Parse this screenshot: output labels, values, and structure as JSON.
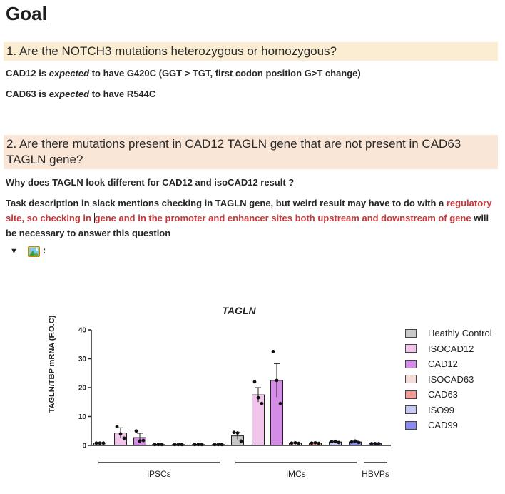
{
  "page": {
    "title": "Goal",
    "q1": {
      "heading": "1. Are the NOTCH3 mutations heterozygous or homozygous?",
      "line1_pre": "CAD12 is ",
      "line1_em": "expected",
      "line1_post": " to have G420C (GGT > TGT, first codon position G>T change)",
      "line2_pre": "CAD63 is ",
      "line2_em": "expected",
      "line2_post": " to have R544C"
    },
    "q2": {
      "heading": "2. Are there mutations present in CAD12 TAGLN gene that are not present in CAD63 TAGLN gene?",
      "question": "Why does TAGLN look different for CAD12 and isoCAD12 result ?",
      "task_normal1": "Task description in slack mentions checking in TAGLN gene, but weird result may have to do with a ",
      "task_red_a": "regulatory site, so checking in",
      "task_red_b": "gene and in the promoter and enhancer sites both upstream and downstream of gene",
      "task_normal2": " will be necessary to answer this question"
    },
    "toggle": {
      "icon": "triangle-down-icon",
      "image_icon": "picture-icon",
      "colon": ":"
    }
  },
  "chart_data": {
    "type": "bar",
    "title": "TAGLN",
    "ylabel": "TAGLN/TBP mRNA (F.O.C)",
    "ylim": [
      0,
      40
    ],
    "yticks": [
      0,
      10,
      20,
      30,
      40
    ],
    "groups": [
      "iPSCs",
      "iMCs",
      "HBVPs"
    ],
    "series": [
      {
        "name": "Heathly Control",
        "color": "#c8c8c8"
      },
      {
        "name": "ISOCAD12",
        "color": "#f2c6ec"
      },
      {
        "name": "CAD12",
        "color": "#d58ce6"
      },
      {
        "name": "ISOCAD63",
        "color": "#f7dada"
      },
      {
        "name": "CAD63",
        "color": "#f49a98"
      },
      {
        "name": "ISO99",
        "color": "#c8c8f4"
      },
      {
        "name": "CAD99",
        "color": "#8c8cf0"
      }
    ],
    "bars": [
      {
        "group": "iPSCs",
        "series": "Heathly Control",
        "value": 0.8,
        "err": 0.2
      },
      {
        "group": "iPSCs",
        "series": "ISOCAD12",
        "value": 4.3,
        "err": 1.8
      },
      {
        "group": "iPSCs",
        "series": "CAD12",
        "value": 2.7,
        "err": 1.5
      },
      {
        "group": "iPSCs",
        "series": "ISOCAD63",
        "value": 0.3,
        "err": 0.1
      },
      {
        "group": "iPSCs",
        "series": "CAD63",
        "value": 0.3,
        "err": 0.1
      },
      {
        "group": "iPSCs",
        "series": "ISO99",
        "value": 0.3,
        "err": 0.1
      },
      {
        "group": "iPSCs",
        "series": "CAD99",
        "value": 0.3,
        "err": 0.1
      },
      {
        "group": "iMCs",
        "series": "Heathly Control",
        "value": 3.3,
        "err": 1.2
      },
      {
        "group": "iMCs",
        "series": "ISOCAD12",
        "value": 17.5,
        "err": 2.5
      },
      {
        "group": "iMCs",
        "series": "CAD12",
        "value": 22.5,
        "err": 5.8
      },
      {
        "group": "iMCs",
        "series": "ISOCAD63",
        "value": 0.8,
        "err": 0.2
      },
      {
        "group": "iMCs",
        "series": "CAD63",
        "value": 0.8,
        "err": 0.2
      },
      {
        "group": "iMCs",
        "series": "ISO99",
        "value": 1.2,
        "err": 0.2
      },
      {
        "group": "iMCs",
        "series": "CAD99",
        "value": 1.2,
        "err": 0.3
      },
      {
        "group": "HBVPs",
        "series": "CAD99",
        "value": 0.6,
        "err": 0.1
      }
    ],
    "points": [
      [
        0.8,
        0.8,
        0.8
      ],
      [
        6.5,
        4.0,
        2.5
      ],
      [
        5.0,
        1.5,
        1.7
      ],
      [
        0.3,
        0.3,
        0.3
      ],
      [
        0.3,
        0.3,
        0.3
      ],
      [
        0.3,
        0.3,
        0.3
      ],
      [
        0.3,
        0.3,
        0.3
      ],
      [
        4.5,
        4.3,
        1.5
      ],
      [
        22.0,
        16.5,
        14.5
      ],
      [
        32.5,
        22.5,
        14.5
      ],
      [
        0.8,
        0.9,
        0.7
      ],
      [
        0.8,
        0.9,
        0.7
      ],
      [
        1.3,
        1.4,
        1.0
      ],
      [
        1.2,
        1.5,
        1.0
      ],
      [
        0.6,
        0.6,
        0.6
      ]
    ]
  }
}
